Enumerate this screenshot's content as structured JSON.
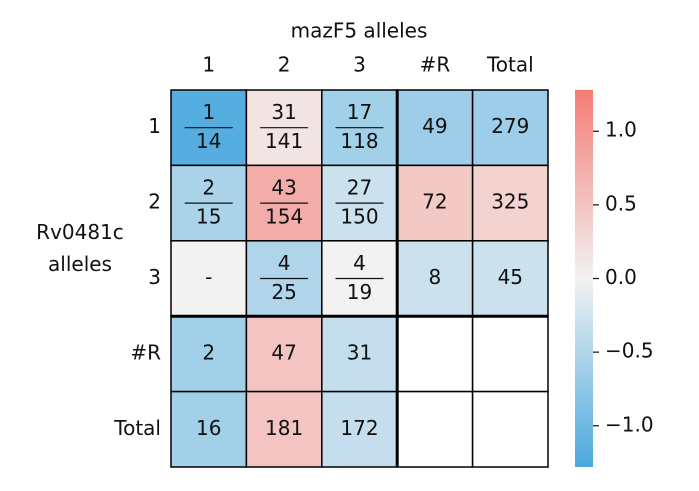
{
  "chart_data": {
    "type": "heatmap",
    "title": "mazF5 alleles",
    "ylabel": "Rv0481c\nalleles",
    "columns": [
      "1",
      "2",
      "3",
      "#R",
      "Total"
    ],
    "rows": [
      "1",
      "2",
      "3",
      "#R",
      "Total"
    ],
    "labels": [
      [
        [
          1,
          14
        ],
        [
          31,
          141
        ],
        [
          17,
          118
        ],
        49,
        279
      ],
      [
        [
          2,
          15
        ],
        [
          43,
          154
        ],
        [
          27,
          150
        ],
        72,
        325
      ],
      [
        "-",
        [
          4,
          25
        ],
        [
          4,
          19
        ],
        8,
        45
      ],
      [
        2,
        47,
        31,
        null,
        null
      ],
      [
        16,
        181,
        172,
        null,
        null
      ]
    ],
    "values": [
      [
        -1.2,
        0.15,
        -0.6,
        -0.65,
        -0.65
      ],
      [
        -0.55,
        0.75,
        -0.3,
        0.45,
        0.35
      ],
      [
        0.0,
        -0.5,
        0.0,
        -0.3,
        -0.3
      ],
      [
        -0.6,
        0.5,
        -0.35,
        null,
        null
      ],
      [
        -0.6,
        0.5,
        -0.35,
        null,
        null
      ]
    ],
    "colormap": [
      "#4aa9de",
      "#f2f2f2",
      "#f47c74"
    ],
    "clim": [
      -1.28,
      1.28
    ],
    "cticks": [
      {
        "value": -1.0,
        "label": "−1.0"
      },
      {
        "value": -0.5,
        "label": "−0.5"
      },
      {
        "value": 0.0,
        "label": "0.0"
      },
      0.5,
      {
        "value": 1.0,
        "label": "1.0"
      }
    ]
  }
}
